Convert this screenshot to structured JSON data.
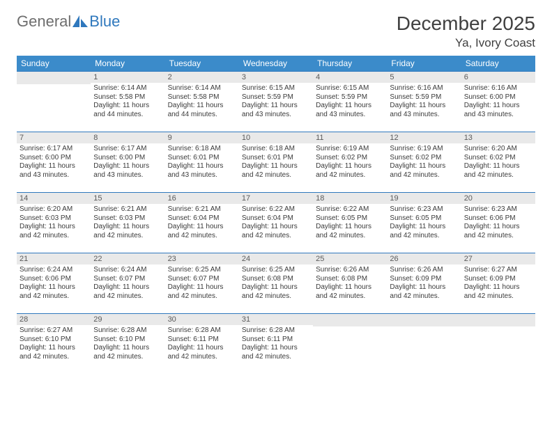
{
  "logo": {
    "text1": "General",
    "text2": "Blue"
  },
  "title": "December 2025",
  "location": "Ya, Ivory Coast",
  "colors": {
    "header_bg": "#3b8bca",
    "header_text": "#ffffff",
    "row_border": "#2f78bd",
    "daynum_bg": "#e9e9e9",
    "body_text": "#3a3a3a",
    "logo_gray": "#6e6e6e",
    "logo_blue": "#2f78bd",
    "page_bg": "#ffffff"
  },
  "weekdays": [
    "Sunday",
    "Monday",
    "Tuesday",
    "Wednesday",
    "Thursday",
    "Friday",
    "Saturday"
  ],
  "weeks": [
    [
      {
        "n": "",
        "sr": "",
        "ss": "",
        "dl": ""
      },
      {
        "n": "1",
        "sr": "Sunrise: 6:14 AM",
        "ss": "Sunset: 5:58 PM",
        "dl": "Daylight: 11 hours and 44 minutes."
      },
      {
        "n": "2",
        "sr": "Sunrise: 6:14 AM",
        "ss": "Sunset: 5:58 PM",
        "dl": "Daylight: 11 hours and 44 minutes."
      },
      {
        "n": "3",
        "sr": "Sunrise: 6:15 AM",
        "ss": "Sunset: 5:59 PM",
        "dl": "Daylight: 11 hours and 43 minutes."
      },
      {
        "n": "4",
        "sr": "Sunrise: 6:15 AM",
        "ss": "Sunset: 5:59 PM",
        "dl": "Daylight: 11 hours and 43 minutes."
      },
      {
        "n": "5",
        "sr": "Sunrise: 6:16 AM",
        "ss": "Sunset: 5:59 PM",
        "dl": "Daylight: 11 hours and 43 minutes."
      },
      {
        "n": "6",
        "sr": "Sunrise: 6:16 AM",
        "ss": "Sunset: 6:00 PM",
        "dl": "Daylight: 11 hours and 43 minutes."
      }
    ],
    [
      {
        "n": "7",
        "sr": "Sunrise: 6:17 AM",
        "ss": "Sunset: 6:00 PM",
        "dl": "Daylight: 11 hours and 43 minutes."
      },
      {
        "n": "8",
        "sr": "Sunrise: 6:17 AM",
        "ss": "Sunset: 6:00 PM",
        "dl": "Daylight: 11 hours and 43 minutes."
      },
      {
        "n": "9",
        "sr": "Sunrise: 6:18 AM",
        "ss": "Sunset: 6:01 PM",
        "dl": "Daylight: 11 hours and 43 minutes."
      },
      {
        "n": "10",
        "sr": "Sunrise: 6:18 AM",
        "ss": "Sunset: 6:01 PM",
        "dl": "Daylight: 11 hours and 42 minutes."
      },
      {
        "n": "11",
        "sr": "Sunrise: 6:19 AM",
        "ss": "Sunset: 6:02 PM",
        "dl": "Daylight: 11 hours and 42 minutes."
      },
      {
        "n": "12",
        "sr": "Sunrise: 6:19 AM",
        "ss": "Sunset: 6:02 PM",
        "dl": "Daylight: 11 hours and 42 minutes."
      },
      {
        "n": "13",
        "sr": "Sunrise: 6:20 AM",
        "ss": "Sunset: 6:02 PM",
        "dl": "Daylight: 11 hours and 42 minutes."
      }
    ],
    [
      {
        "n": "14",
        "sr": "Sunrise: 6:20 AM",
        "ss": "Sunset: 6:03 PM",
        "dl": "Daylight: 11 hours and 42 minutes."
      },
      {
        "n": "15",
        "sr": "Sunrise: 6:21 AM",
        "ss": "Sunset: 6:03 PM",
        "dl": "Daylight: 11 hours and 42 minutes."
      },
      {
        "n": "16",
        "sr": "Sunrise: 6:21 AM",
        "ss": "Sunset: 6:04 PM",
        "dl": "Daylight: 11 hours and 42 minutes."
      },
      {
        "n": "17",
        "sr": "Sunrise: 6:22 AM",
        "ss": "Sunset: 6:04 PM",
        "dl": "Daylight: 11 hours and 42 minutes."
      },
      {
        "n": "18",
        "sr": "Sunrise: 6:22 AM",
        "ss": "Sunset: 6:05 PM",
        "dl": "Daylight: 11 hours and 42 minutes."
      },
      {
        "n": "19",
        "sr": "Sunrise: 6:23 AM",
        "ss": "Sunset: 6:05 PM",
        "dl": "Daylight: 11 hours and 42 minutes."
      },
      {
        "n": "20",
        "sr": "Sunrise: 6:23 AM",
        "ss": "Sunset: 6:06 PM",
        "dl": "Daylight: 11 hours and 42 minutes."
      }
    ],
    [
      {
        "n": "21",
        "sr": "Sunrise: 6:24 AM",
        "ss": "Sunset: 6:06 PM",
        "dl": "Daylight: 11 hours and 42 minutes."
      },
      {
        "n": "22",
        "sr": "Sunrise: 6:24 AM",
        "ss": "Sunset: 6:07 PM",
        "dl": "Daylight: 11 hours and 42 minutes."
      },
      {
        "n": "23",
        "sr": "Sunrise: 6:25 AM",
        "ss": "Sunset: 6:07 PM",
        "dl": "Daylight: 11 hours and 42 minutes."
      },
      {
        "n": "24",
        "sr": "Sunrise: 6:25 AM",
        "ss": "Sunset: 6:08 PM",
        "dl": "Daylight: 11 hours and 42 minutes."
      },
      {
        "n": "25",
        "sr": "Sunrise: 6:26 AM",
        "ss": "Sunset: 6:08 PM",
        "dl": "Daylight: 11 hours and 42 minutes."
      },
      {
        "n": "26",
        "sr": "Sunrise: 6:26 AM",
        "ss": "Sunset: 6:09 PM",
        "dl": "Daylight: 11 hours and 42 minutes."
      },
      {
        "n": "27",
        "sr": "Sunrise: 6:27 AM",
        "ss": "Sunset: 6:09 PM",
        "dl": "Daylight: 11 hours and 42 minutes."
      }
    ],
    [
      {
        "n": "28",
        "sr": "Sunrise: 6:27 AM",
        "ss": "Sunset: 6:10 PM",
        "dl": "Daylight: 11 hours and 42 minutes."
      },
      {
        "n": "29",
        "sr": "Sunrise: 6:28 AM",
        "ss": "Sunset: 6:10 PM",
        "dl": "Daylight: 11 hours and 42 minutes."
      },
      {
        "n": "30",
        "sr": "Sunrise: 6:28 AM",
        "ss": "Sunset: 6:11 PM",
        "dl": "Daylight: 11 hours and 42 minutes."
      },
      {
        "n": "31",
        "sr": "Sunrise: 6:28 AM",
        "ss": "Sunset: 6:11 PM",
        "dl": "Daylight: 11 hours and 42 minutes."
      },
      {
        "n": "",
        "sr": "",
        "ss": "",
        "dl": ""
      },
      {
        "n": "",
        "sr": "",
        "ss": "",
        "dl": ""
      },
      {
        "n": "",
        "sr": "",
        "ss": "",
        "dl": ""
      }
    ]
  ]
}
